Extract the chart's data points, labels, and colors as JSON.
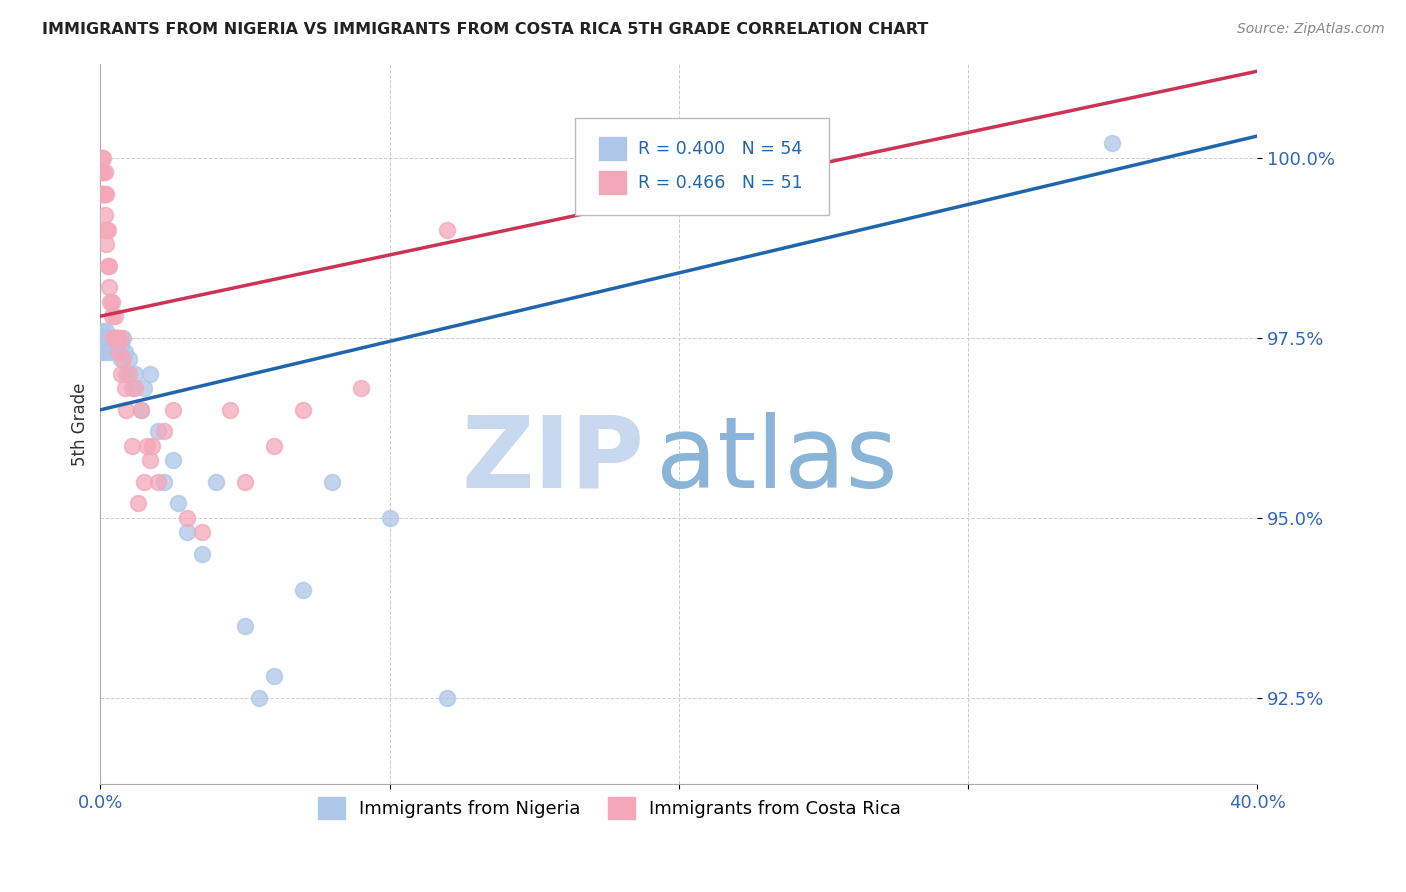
{
  "title": "IMMIGRANTS FROM NIGERIA VS IMMIGRANTS FROM COSTA RICA 5TH GRADE CORRELATION CHART",
  "source": "Source: ZipAtlas.com",
  "ylabel_label": "5th Grade",
  "ylabel_values": [
    92.5,
    95.0,
    97.5,
    100.0
  ],
  "xlim": [
    0.0,
    40.0
  ],
  "ylim": [
    91.3,
    101.3
  ],
  "legend1_label": "Immigrants from Nigeria",
  "legend2_label": "Immigrants from Costa Rica",
  "R_nigeria": 0.4,
  "N_nigeria": 54,
  "R_costarica": 0.466,
  "N_costarica": 51,
  "nigeria_color": "#aec6e8",
  "nigeria_edge_color": "#7aaad0",
  "costarica_color": "#f4a7b9",
  "costarica_edge_color": "#e07090",
  "nigeria_line_color": "#2166ac",
  "costarica_line_color": "#cc3355",
  "background_color": "#ffffff",
  "watermark_zip_color": "#c8d8ee",
  "watermark_atlas_color": "#8ab4d8",
  "nigeria_x": [
    0.05,
    0.05,
    0.05,
    0.05,
    0.05,
    0.1,
    0.1,
    0.1,
    0.1,
    0.15,
    0.15,
    0.2,
    0.2,
    0.2,
    0.25,
    0.25,
    0.3,
    0.3,
    0.35,
    0.35,
    0.4,
    0.4,
    0.45,
    0.5,
    0.5,
    0.55,
    0.6,
    0.6,
    0.7,
    0.7,
    0.8,
    0.85,
    0.9,
    1.0,
    1.1,
    1.2,
    1.4,
    1.5,
    1.7,
    2.0,
    2.2,
    2.5,
    2.7,
    3.0,
    3.5,
    4.0,
    5.0,
    5.5,
    6.0,
    7.0,
    8.0,
    10.0,
    12.0,
    35.0
  ],
  "nigeria_y": [
    97.4,
    97.5,
    97.6,
    97.3,
    97.5,
    97.5,
    97.5,
    97.5,
    97.4,
    97.5,
    97.5,
    97.3,
    97.5,
    97.6,
    97.4,
    97.5,
    97.5,
    97.4,
    97.3,
    97.5,
    97.5,
    97.5,
    97.5,
    97.5,
    97.4,
    97.5,
    97.3,
    97.5,
    97.2,
    97.4,
    97.5,
    97.3,
    97.0,
    97.2,
    96.8,
    97.0,
    96.5,
    96.8,
    97.0,
    96.2,
    95.5,
    95.8,
    95.2,
    94.8,
    94.5,
    95.5,
    93.5,
    92.5,
    92.8,
    94.0,
    95.5,
    95.0,
    92.5,
    100.2
  ],
  "costarica_x": [
    0.05,
    0.05,
    0.05,
    0.05,
    0.05,
    0.1,
    0.1,
    0.1,
    0.15,
    0.15,
    0.15,
    0.2,
    0.2,
    0.2,
    0.25,
    0.25,
    0.3,
    0.3,
    0.35,
    0.4,
    0.4,
    0.45,
    0.5,
    0.5,
    0.6,
    0.6,
    0.7,
    0.7,
    0.8,
    0.85,
    0.9,
    1.0,
    1.1,
    1.2,
    1.3,
    1.4,
    1.5,
    1.6,
    1.7,
    1.8,
    2.0,
    2.2,
    2.5,
    3.0,
    3.5,
    4.5,
    5.0,
    6.0,
    7.0,
    9.0,
    12.0
  ],
  "costarica_y": [
    99.8,
    100.0,
    99.5,
    99.8,
    99.5,
    99.5,
    99.8,
    100.0,
    99.5,
    99.8,
    99.2,
    99.0,
    99.5,
    98.8,
    98.5,
    99.0,
    98.5,
    98.2,
    98.0,
    98.0,
    97.8,
    97.5,
    97.8,
    97.5,
    97.5,
    97.3,
    97.0,
    97.5,
    97.2,
    96.8,
    96.5,
    97.0,
    96.0,
    96.8,
    95.2,
    96.5,
    95.5,
    96.0,
    95.8,
    96.0,
    95.5,
    96.2,
    96.5,
    95.0,
    94.8,
    96.5,
    95.5,
    96.0,
    96.5,
    96.8,
    99.0
  ],
  "nigeria_line_x0": 0.0,
  "nigeria_line_y0": 96.5,
  "nigeria_line_x1": 40.0,
  "nigeria_line_y1": 100.3,
  "costarica_line_x0": 0.0,
  "costarica_line_y0": 97.8,
  "costarica_line_x1": 40.0,
  "costarica_line_y1": 101.2
}
